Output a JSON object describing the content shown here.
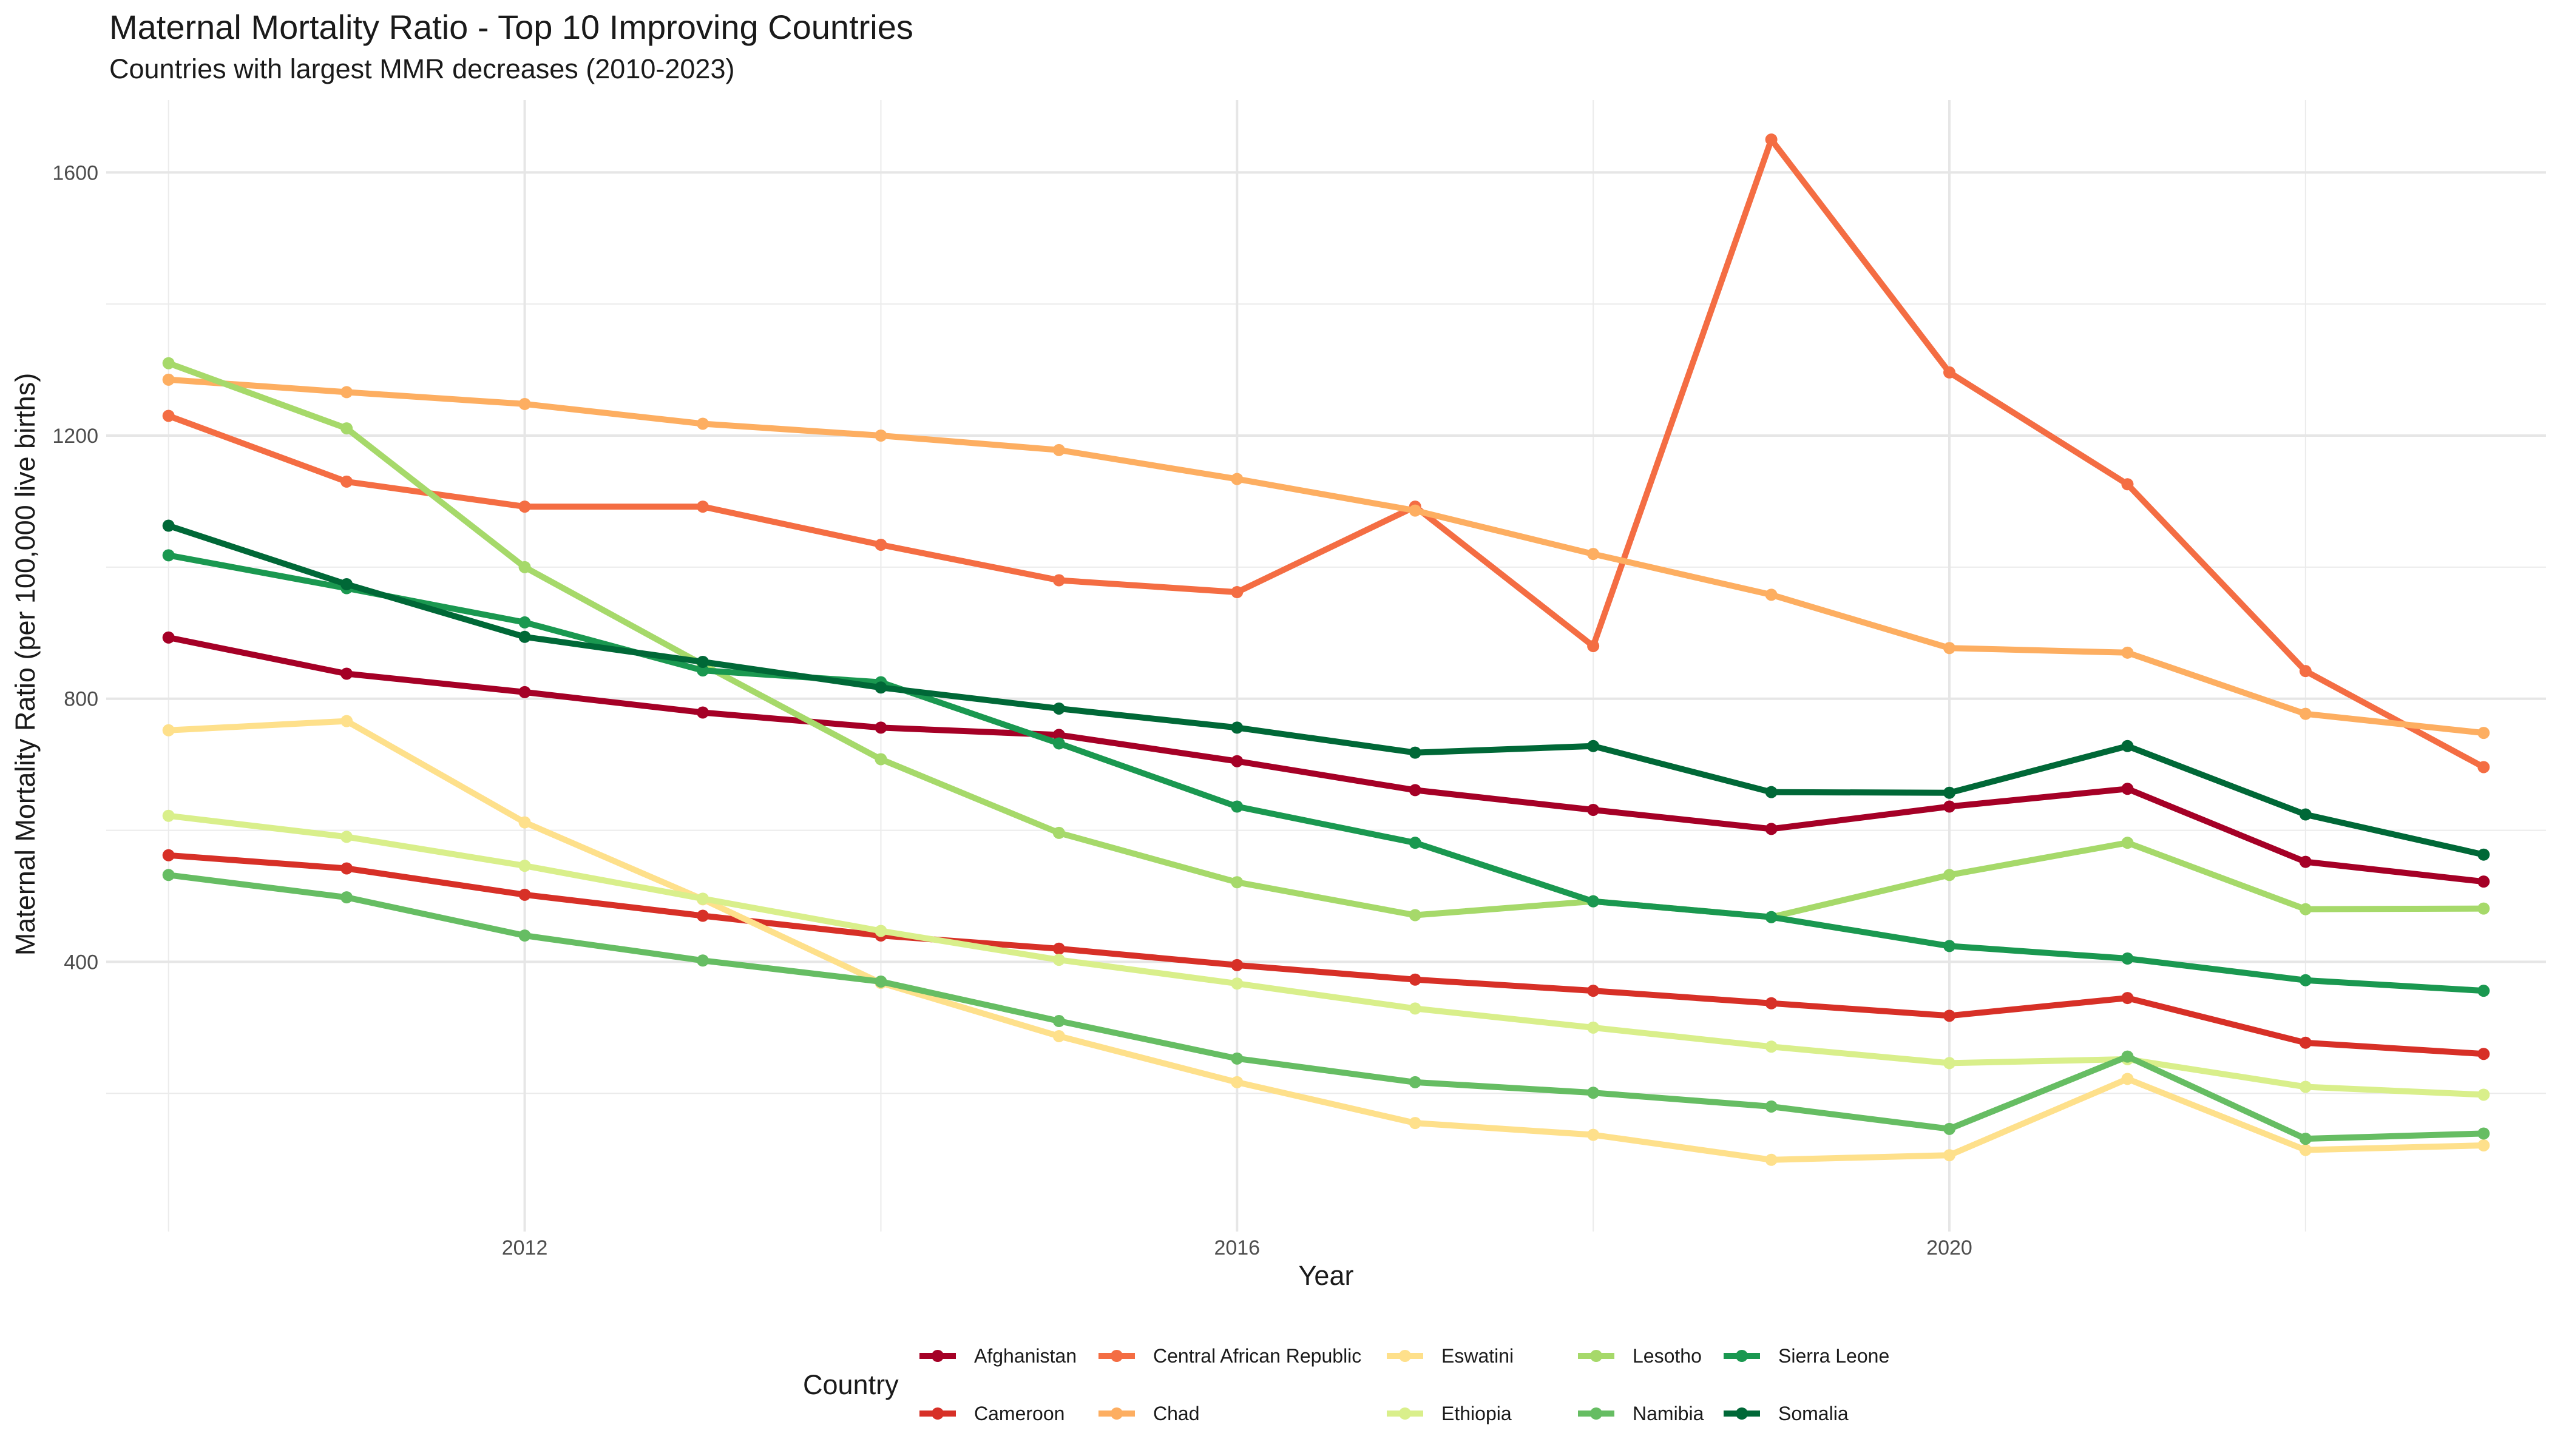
{
  "chart_data": {
    "type": "line",
    "title": "Maternal Mortality Ratio - Top 10 Improving Countries",
    "subtitle": "Countries with largest MMR decreases (2010-2023)",
    "xlabel": "Year",
    "ylabel": "Maternal Mortality Ratio (per 100,000 live births)",
    "xlim": [
      2009.65,
      2023.35
    ],
    "ylim": [
      -10,
      1710
    ],
    "x_ticks": [
      2012,
      2016,
      2020
    ],
    "y_ticks": [
      400,
      800,
      1200,
      1600
    ],
    "x_minor": [
      2010,
      2014,
      2018,
      2022
    ],
    "y_minor": [
      200,
      600,
      1000,
      1400
    ],
    "grid": true,
    "legend_title": "Country",
    "legend_position": "bottom",
    "x": [
      2010,
      2011,
      2012,
      2013,
      2014,
      2015,
      2016,
      2017,
      2018,
      2019,
      2020,
      2021,
      2022,
      2023
    ],
    "series": [
      {
        "name": "Afghanistan",
        "color": "#A50026",
        "values": [
          893,
          838,
          810,
          779,
          756,
          745,
          705,
          661,
          631,
          602,
          636,
          663,
          552,
          522
        ]
      },
      {
        "name": "Cameroon",
        "color": "#D73027",
        "values": [
          562,
          542,
          502,
          470,
          440,
          420,
          395,
          373,
          356,
          337,
          318,
          345,
          277,
          260
        ]
      },
      {
        "name": "Central African Republic",
        "color": "#F46D43",
        "values": [
          1230,
          1130,
          1092,
          1092,
          1034,
          980,
          962,
          1092,
          880,
          1650,
          1296,
          1126,
          842,
          696
        ]
      },
      {
        "name": "Chad",
        "color": "#FDAE61",
        "values": [
          1285,
          1266,
          1248,
          1218,
          1200,
          1178,
          1134,
          1086,
          1020,
          958,
          877,
          870,
          777,
          748
        ]
      },
      {
        "name": "Eswatini",
        "color": "#FEE08B",
        "values": [
          752,
          766,
          612,
          495,
          368,
          287,
          217,
          155,
          137,
          99,
          106,
          222,
          114,
          121
        ]
      },
      {
        "name": "Ethiopia",
        "color": "#D9EF8B",
        "values": [
          622,
          590,
          546,
          496,
          447,
          403,
          367,
          329,
          300,
          271,
          246,
          252,
          210,
          198
        ]
      },
      {
        "name": "Lesotho",
        "color": "#A6D96A",
        "values": [
          1310,
          1211,
          1000,
          852,
          708,
          596,
          521,
          471,
          492,
          468,
          532,
          581,
          480,
          481
        ]
      },
      {
        "name": "Namibia",
        "color": "#66BD63",
        "values": [
          532,
          498,
          440,
          402,
          370,
          310,
          253,
          217,
          201,
          180,
          146,
          256,
          131,
          139
        ]
      },
      {
        "name": "Sierra Leone",
        "color": "#1A9850",
        "values": [
          1018,
          968,
          916,
          843,
          825,
          732,
          636,
          581,
          492,
          468,
          424,
          405,
          372,
          356
        ]
      },
      {
        "name": "Somalia",
        "color": "#006837",
        "values": [
          1063,
          974,
          894,
          856,
          817,
          785,
          756,
          718,
          728,
          658,
          657,
          728,
          624,
          563
        ]
      }
    ]
  }
}
